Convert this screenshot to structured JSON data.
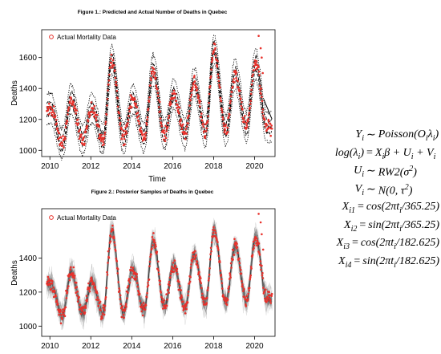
{
  "figures": [
    {
      "id": "fig1",
      "title": "Figure 1.: Predicted and Actual Number of Deaths in Quebec",
      "legend": "Actual Mortality Data",
      "xlabel": "Time",
      "ylabel": "Deaths"
    },
    {
      "id": "fig2",
      "title": "Figure 2.: Posterior Samples of Deaths in Quebec",
      "legend": "Actual Mortality Data",
      "xlabel": "",
      "ylabel": "Deaths"
    }
  ],
  "chart_data": [
    {
      "type": "line",
      "title": "Figure 1.: Predicted and Actual Number of Deaths in Quebec",
      "xlabel": "Time",
      "ylabel": "Deaths",
      "xlim": [
        2009.6,
        2021.0
      ],
      "ylim": [
        960,
        1780
      ],
      "xticks": [
        "2010",
        "2012",
        "2014",
        "2016",
        "2018",
        "2020"
      ],
      "yticks": [
        "1000",
        "1200",
        "1400",
        "1600"
      ],
      "legend": {
        "label": "Actual Mortality Data",
        "position": "top-left"
      },
      "grid": false,
      "peaks": [
        {
          "x": 2010.05,
          "y": 1270
        },
        {
          "x": 2011.05,
          "y": 1330
        },
        {
          "x": 2012.05,
          "y": 1270
        },
        {
          "x": 2013.02,
          "y": 1580
        },
        {
          "x": 2014.05,
          "y": 1330
        },
        {
          "x": 2015.05,
          "y": 1520
        },
        {
          "x": 2016.05,
          "y": 1360
        },
        {
          "x": 2017.05,
          "y": 1440
        },
        {
          "x": 2018.02,
          "y": 1650
        },
        {
          "x": 2019.05,
          "y": 1490
        },
        {
          "x": 2020.05,
          "y": 1560
        }
      ],
      "troughs": [
        {
          "x": 2010.6,
          "y": 1040
        },
        {
          "x": 2011.6,
          "y": 1070
        },
        {
          "x": 2012.6,
          "y": 1070
        },
        {
          "x": 2013.6,
          "y": 1080
        },
        {
          "x": 2014.6,
          "y": 1080
        },
        {
          "x": 2015.6,
          "y": 1100
        },
        {
          "x": 2016.6,
          "y": 1110
        },
        {
          "x": 2017.6,
          "y": 1120
        },
        {
          "x": 2018.6,
          "y": 1130
        },
        {
          "x": 2019.6,
          "y": 1150
        },
        {
          "x": 2020.6,
          "y": 1150
        }
      ],
      "outliers": [
        {
          "x": 2020.2,
          "y": 1740
        },
        {
          "x": 2020.3,
          "y": 1660
        },
        {
          "x": 2020.35,
          "y": 1600
        },
        {
          "x": 2020.4,
          "y": 1500
        }
      ],
      "series": [
        {
          "name": "Actual Mortality Data",
          "marker": "point",
          "color": "#e8312b"
        },
        {
          "role": "prediction mean",
          "style": "dashed",
          "color": "#000000"
        },
        {
          "role": "prediction interval",
          "style": "dotted",
          "color": "#000000"
        }
      ]
    },
    {
      "type": "line",
      "title": "Figure 2.: Posterior Samples of Deaths in Quebec",
      "xlabel": "",
      "ylabel": "Deaths",
      "xlim": [
        2009.6,
        2021.0
      ],
      "ylim": [
        940,
        1690
      ],
      "xticks": [
        "2010",
        "2012",
        "2014",
        "2016",
        "2018",
        "2020"
      ],
      "yticks": [
        "1000",
        "1200",
        "1400"
      ],
      "legend": {
        "label": "Actual Mortality Data",
        "position": "top-left"
      },
      "grid": false,
      "peaks": [
        {
          "x": 2010.05,
          "y": 1250
        },
        {
          "x": 2011.05,
          "y": 1320
        },
        {
          "x": 2012.05,
          "y": 1260
        },
        {
          "x": 2013.02,
          "y": 1560
        },
        {
          "x": 2014.05,
          "y": 1330
        },
        {
          "x": 2015.05,
          "y": 1500
        },
        {
          "x": 2016.05,
          "y": 1360
        },
        {
          "x": 2017.05,
          "y": 1420
        },
        {
          "x": 2018.02,
          "y": 1560
        },
        {
          "x": 2019.05,
          "y": 1470
        },
        {
          "x": 2020.05,
          "y": 1520
        }
      ],
      "troughs": [
        {
          "x": 2010.6,
          "y": 1060
        },
        {
          "x": 2011.6,
          "y": 1080
        },
        {
          "x": 2012.6,
          "y": 1070
        },
        {
          "x": 2013.6,
          "y": 1080
        },
        {
          "x": 2014.6,
          "y": 1090
        },
        {
          "x": 2015.6,
          "y": 1110
        },
        {
          "x": 2016.6,
          "y": 1110
        },
        {
          "x": 2017.6,
          "y": 1130
        },
        {
          "x": 2018.6,
          "y": 1140
        },
        {
          "x": 2019.6,
          "y": 1150
        },
        {
          "x": 2020.6,
          "y": 1160
        }
      ],
      "outliers": [
        {
          "x": 2020.2,
          "y": 1660
        },
        {
          "x": 2020.3,
          "y": 1610
        },
        {
          "x": 2020.35,
          "y": 1540
        },
        {
          "x": 2020.42,
          "y": 1450
        }
      ],
      "series": [
        {
          "name": "Actual Mortality Data",
          "marker": "point",
          "color": "#e8312b"
        },
        {
          "role": "posterior samples",
          "style": "line band",
          "color": "#000000"
        }
      ]
    }
  ],
  "equations": [
    {
      "lhs": "Y",
      "lhs_sub": "i",
      "op": "∼",
      "rhs": "Poisson(O",
      "rhs_sub": "i",
      "rhs_mid": "λ",
      "rhs_sub2": "i",
      "rhs_tail": ")"
    },
    {
      "lhs": "log(λ",
      "lhs_sub": "i",
      "lhs_tail": ")",
      "op": "=",
      "rhs": "X",
      "rhs_sub": "i",
      "rhs_mid": "β + U",
      "rhs_sub2": "i",
      "rhs_tail": " + V",
      "rhs_sub3": "i"
    },
    {
      "lhs": "U",
      "lhs_sub": "i",
      "op": "∼",
      "rhs": "RW2(σ",
      "rhs_sup": "2",
      "rhs_tail": ")"
    },
    {
      "lhs": "V",
      "lhs_sub": "i",
      "op": "∼",
      "rhs": "N(0, τ",
      "rhs_sup": "2",
      "rhs_tail": ")"
    },
    {
      "lhs": "X",
      "lhs_sub": "i1",
      "op": "=",
      "rhs": "cos(2πt",
      "rhs_sub": "i",
      "rhs_tail": "/365.25)"
    },
    {
      "lhs": "X",
      "lhs_sub": "i2",
      "op": "=",
      "rhs": "sin(2πt",
      "rhs_sub": "i",
      "rhs_tail": "/365.25)"
    },
    {
      "lhs": "X",
      "lhs_sub": "i3",
      "op": "=",
      "rhs": "cos(2πt",
      "rhs_sub": "i",
      "rhs_tail": "/182.625)"
    },
    {
      "lhs": "X",
      "lhs_sub": "i4",
      "op": "=",
      "rhs": "sin(2πt",
      "rhs_sub": "i",
      "rhs_tail": "/182.625)"
    }
  ],
  "colors": {
    "points": "#e8312b",
    "lines": "#000000",
    "background": "#ffffff"
  }
}
